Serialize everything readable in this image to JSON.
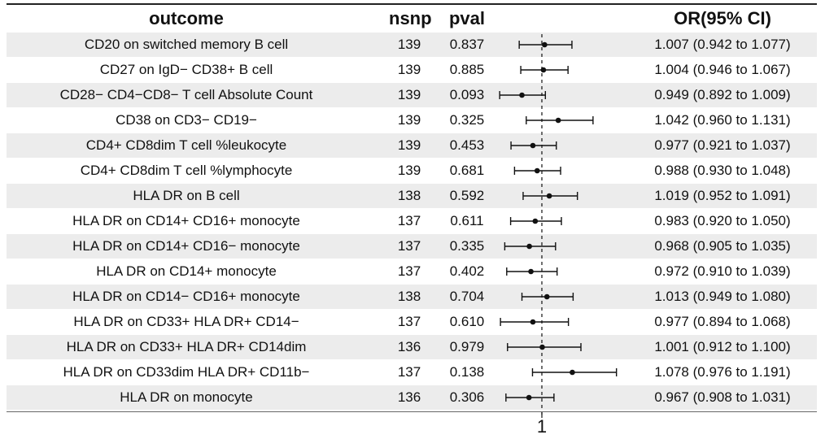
{
  "headers": {
    "outcome": "outcome",
    "nsnp": "nsnp",
    "pval": "pval",
    "or_ci": "OR(95% CI)"
  },
  "chart_data": {
    "type": "forest",
    "reference_line": 1,
    "xlim": [
      0.86,
      1.2
    ],
    "x_tick_labels": [
      "1"
    ],
    "rows": [
      {
        "outcome": "CD20 on switched memory B cell",
        "nsnp": "139",
        "pval": "0.837",
        "or": 1.007,
        "lo": 0.942,
        "hi": 1.077,
        "or_text": "1.007 (0.942 to 1.077)"
      },
      {
        "outcome": "CD27 on IgD− CD38+ B cell",
        "nsnp": "139",
        "pval": "0.885",
        "or": 1.004,
        "lo": 0.946,
        "hi": 1.067,
        "or_text": "1.004 (0.946 to 1.067)"
      },
      {
        "outcome": "CD28− CD4−CD8− T cell Absolute Count",
        "nsnp": "139",
        "pval": "0.093",
        "or": 0.949,
        "lo": 0.892,
        "hi": 1.009,
        "or_text": "0.949 (0.892 to 1.009)"
      },
      {
        "outcome": "CD38 on CD3− CD19−",
        "nsnp": "139",
        "pval": "0.325",
        "or": 1.042,
        "lo": 0.96,
        "hi": 1.131,
        "or_text": "1.042 (0.960 to 1.131)"
      },
      {
        "outcome": "CD4+ CD8dim T cell %leukocyte",
        "nsnp": "139",
        "pval": "0.453",
        "or": 0.977,
        "lo": 0.921,
        "hi": 1.037,
        "or_text": "0.977 (0.921 to 1.037)"
      },
      {
        "outcome": "CD4+ CD8dim T cell %lymphocyte",
        "nsnp": "139",
        "pval": "0.681",
        "or": 0.988,
        "lo": 0.93,
        "hi": 1.048,
        "or_text": "0.988 (0.930 to 1.048)"
      },
      {
        "outcome": "HLA DR on B cell",
        "nsnp": "138",
        "pval": "0.592",
        "or": 1.019,
        "lo": 0.952,
        "hi": 1.091,
        "or_text": "1.019 (0.952 to 1.091)"
      },
      {
        "outcome": "HLA DR on CD14+ CD16+ monocyte",
        "nsnp": "137",
        "pval": "0.611",
        "or": 0.983,
        "lo": 0.92,
        "hi": 1.05,
        "or_text": "0.983 (0.920 to 1.050)"
      },
      {
        "outcome": "HLA DR on CD14+ CD16− monocyte",
        "nsnp": "137",
        "pval": "0.335",
        "or": 0.968,
        "lo": 0.905,
        "hi": 1.035,
        "or_text": "0.968 (0.905 to 1.035)"
      },
      {
        "outcome": "HLA DR on CD14+ monocyte",
        "nsnp": "137",
        "pval": "0.402",
        "or": 0.972,
        "lo": 0.91,
        "hi": 1.039,
        "or_text": "0.972 (0.910 to 1.039)"
      },
      {
        "outcome": "HLA DR on CD14− CD16+ monocyte",
        "nsnp": "138",
        "pval": "0.704",
        "or": 1.013,
        "lo": 0.949,
        "hi": 1.08,
        "or_text": "1.013 (0.949 to 1.080)"
      },
      {
        "outcome": "HLA DR on CD33+ HLA DR+ CD14−",
        "nsnp": "137",
        "pval": "0.610",
        "or": 0.977,
        "lo": 0.894,
        "hi": 1.068,
        "or_text": "0.977 (0.894 to 1.068)"
      },
      {
        "outcome": "HLA DR on CD33+ HLA DR+ CD14dim",
        "nsnp": "136",
        "pval": "0.979",
        "or": 1.001,
        "lo": 0.912,
        "hi": 1.1,
        "or_text": "1.001 (0.912 to 1.100)"
      },
      {
        "outcome": "HLA DR on CD33dim HLA DR+ CD11b−",
        "nsnp": "137",
        "pval": "0.138",
        "or": 1.078,
        "lo": 0.976,
        "hi": 1.191,
        "or_text": "1.078 (0.976 to 1.191)"
      },
      {
        "outcome": "HLA DR on monocyte",
        "nsnp": "136",
        "pval": "0.306",
        "or": 0.967,
        "lo": 0.908,
        "hi": 1.031,
        "or_text": "0.967 (0.908 to 1.031)"
      }
    ]
  }
}
